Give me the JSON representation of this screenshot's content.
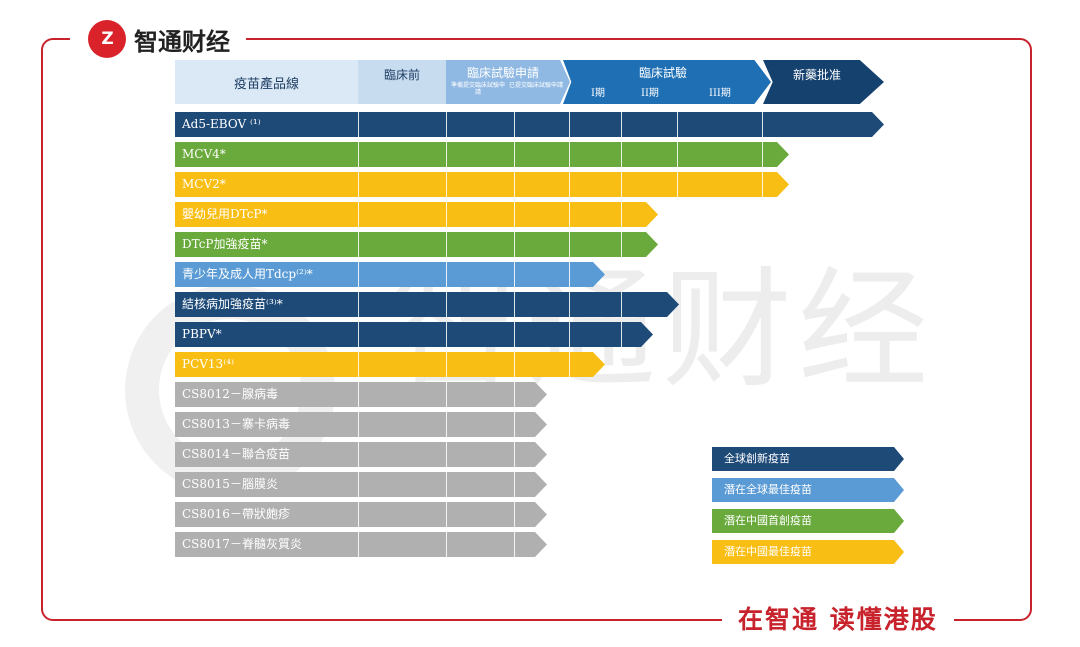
{
  "brand": {
    "logo_text": "Z",
    "name": "智通财经"
  },
  "slogan": "在智通 读懂港股",
  "watermark": "智通财经",
  "colors": {
    "navy": "#1e4a78",
    "green": "#6aaa3c",
    "yellow": "#f9be14",
    "lightblue": "#5b9bd5",
    "gray": "#b0b0b0",
    "accent": "#c8232c"
  },
  "header": {
    "product_line": "疫苗產品線",
    "preclinical": "臨床前",
    "clinical_application": "臨床試驗申請",
    "clinical_application_sub1": "準備提交臨床試驗申請",
    "clinical_application_sub2": "已提交臨床試驗申請",
    "clinical_trial": "臨床試驗",
    "phase1": "I期",
    "phase2": "II期",
    "phase3": "III期",
    "nda": "新藥批准"
  },
  "rows": [
    {
      "label": "Ad5-EBOV ⁽¹⁾",
      "category": "navy",
      "progress": 1.0
    },
    {
      "label": "MCV4*",
      "category": "green",
      "progress": 0.82
    },
    {
      "label": "MCV2*",
      "category": "yellow",
      "progress": 0.82
    },
    {
      "label": "嬰幼兒用DTcP*",
      "category": "yellow",
      "progress": 0.57
    },
    {
      "label": "DTcP加強疫苗*",
      "category": "green",
      "progress": 0.57
    },
    {
      "label": "青少年及成人用Tdcp⁽²⁾*",
      "category": "lightblue",
      "progress": 0.47
    },
    {
      "label": "結核病加強疫苗⁽³⁾*",
      "category": "navy",
      "progress": 0.61
    },
    {
      "label": "PBPV*",
      "category": "navy",
      "progress": 0.56
    },
    {
      "label": "PCV13⁽⁴⁾",
      "category": "yellow",
      "progress": 0.47
    },
    {
      "label": "CS8012－腺病毒",
      "category": "gray",
      "progress": 0.36
    },
    {
      "label": "CS8013－寨卡病毒",
      "category": "gray",
      "progress": 0.36
    },
    {
      "label": "CS8014－聯合疫苗",
      "category": "gray",
      "progress": 0.36
    },
    {
      "label": "CS8015－腦膜炎",
      "category": "gray",
      "progress": 0.36
    },
    {
      "label": "CS8016－帶狀皰疹",
      "category": "gray",
      "progress": 0.36
    },
    {
      "label": "CS8017－脊髓灰質炎",
      "category": "gray",
      "progress": 0.36
    }
  ],
  "legend": [
    {
      "label": "全球創新疫苗",
      "category": "navy"
    },
    {
      "label": "潛在全球最佳疫苗",
      "category": "lightblue"
    },
    {
      "label": "潛在中國首創疫苗",
      "category": "green"
    },
    {
      "label": "潛在中國最佳疫苗",
      "category": "yellow"
    }
  ]
}
